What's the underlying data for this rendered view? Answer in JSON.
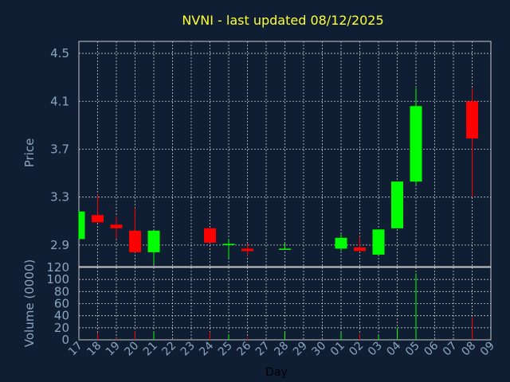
{
  "colors": {
    "background": "#0f1e32",
    "plot_background": "#0f1e32",
    "grid": "#c8c8c8",
    "axis_text": "#8aa6c2",
    "title": "#ffff33",
    "up": "#00ff00",
    "down": "#ff0000",
    "xlabel": "#000000"
  },
  "chart_data": {
    "type": "candlestick",
    "title": "NVNI - last updated 08/12/2025",
    "xlabel": "Day",
    "price_panel": {
      "ylabel": "Price",
      "ylim": [
        2.72,
        4.6
      ],
      "yticks": [
        2.9,
        3.3,
        3.7,
        4.1,
        4.5
      ],
      "ytick_labels": [
        "2.9",
        "3.3",
        "3.7",
        "4.1",
        "4.5"
      ]
    },
    "volume_panel": {
      "ylabel": "Volume (0000)",
      "ylim": [
        0,
        120
      ],
      "yticks": [
        0,
        20,
        40,
        60,
        80,
        100,
        120
      ],
      "ytick_labels": [
        "0",
        "20",
        "40",
        "60",
        "80",
        "100",
        "120"
      ]
    },
    "x_tick_labels": [
      "17",
      "18",
      "19",
      "20",
      "21",
      "22",
      "23",
      "24",
      "25",
      "26",
      "27",
      "28",
      "29",
      "30",
      "01",
      "02",
      "03",
      "04",
      "05",
      "06",
      "07",
      "08",
      "09"
    ],
    "candles": [
      {
        "day": "17",
        "open": 2.95,
        "close": 3.18,
        "high": 3.18,
        "low": 2.95,
        "volume": 1
      },
      {
        "day": "18",
        "open": 3.15,
        "close": 3.09,
        "high": 3.32,
        "low": 3.09,
        "volume": 12
      },
      {
        "day": "19",
        "open": 3.07,
        "close": 3.04,
        "high": 3.14,
        "low": 2.95,
        "volume": 3
      },
      {
        "day": "20",
        "open": 3.02,
        "close": 2.84,
        "high": 3.21,
        "low": 2.84,
        "volume": 14
      },
      {
        "day": "21",
        "open": 2.84,
        "close": 3.02,
        "high": 3.02,
        "low": 2.74,
        "volume": 13
      },
      {
        "day": "24",
        "open": 3.04,
        "close": 2.92,
        "high": 3.04,
        "low": 2.92,
        "volume": 13
      },
      {
        "day": "25",
        "open": 2.9,
        "close": 2.91,
        "high": 2.95,
        "low": 2.79,
        "volume": 9
      },
      {
        "day": "26",
        "open": 2.87,
        "close": 2.85,
        "high": 2.91,
        "low": 2.81,
        "volume": 4
      },
      {
        "day": "28",
        "open": 2.86,
        "close": 2.87,
        "high": 2.92,
        "low": 2.86,
        "volume": 13
      },
      {
        "day": "01",
        "open": 2.87,
        "close": 2.96,
        "high": 2.99,
        "low": 2.85,
        "volume": 12
      },
      {
        "day": "02",
        "open": 2.88,
        "close": 2.85,
        "high": 2.97,
        "low": 2.85,
        "volume": 10
      },
      {
        "day": "03",
        "open": 2.82,
        "close": 3.03,
        "high": 3.03,
        "low": 2.82,
        "volume": 7
      },
      {
        "day": "04",
        "open": 3.04,
        "close": 3.43,
        "high": 3.43,
        "low": 3.04,
        "volume": 20
      },
      {
        "day": "05",
        "open": 3.43,
        "close": 4.06,
        "high": 4.21,
        "low": 3.4,
        "volume": 110
      },
      {
        "day": "08",
        "open": 4.1,
        "close": 3.79,
        "high": 4.21,
        "low": 3.3,
        "volume": 37
      }
    ]
  }
}
